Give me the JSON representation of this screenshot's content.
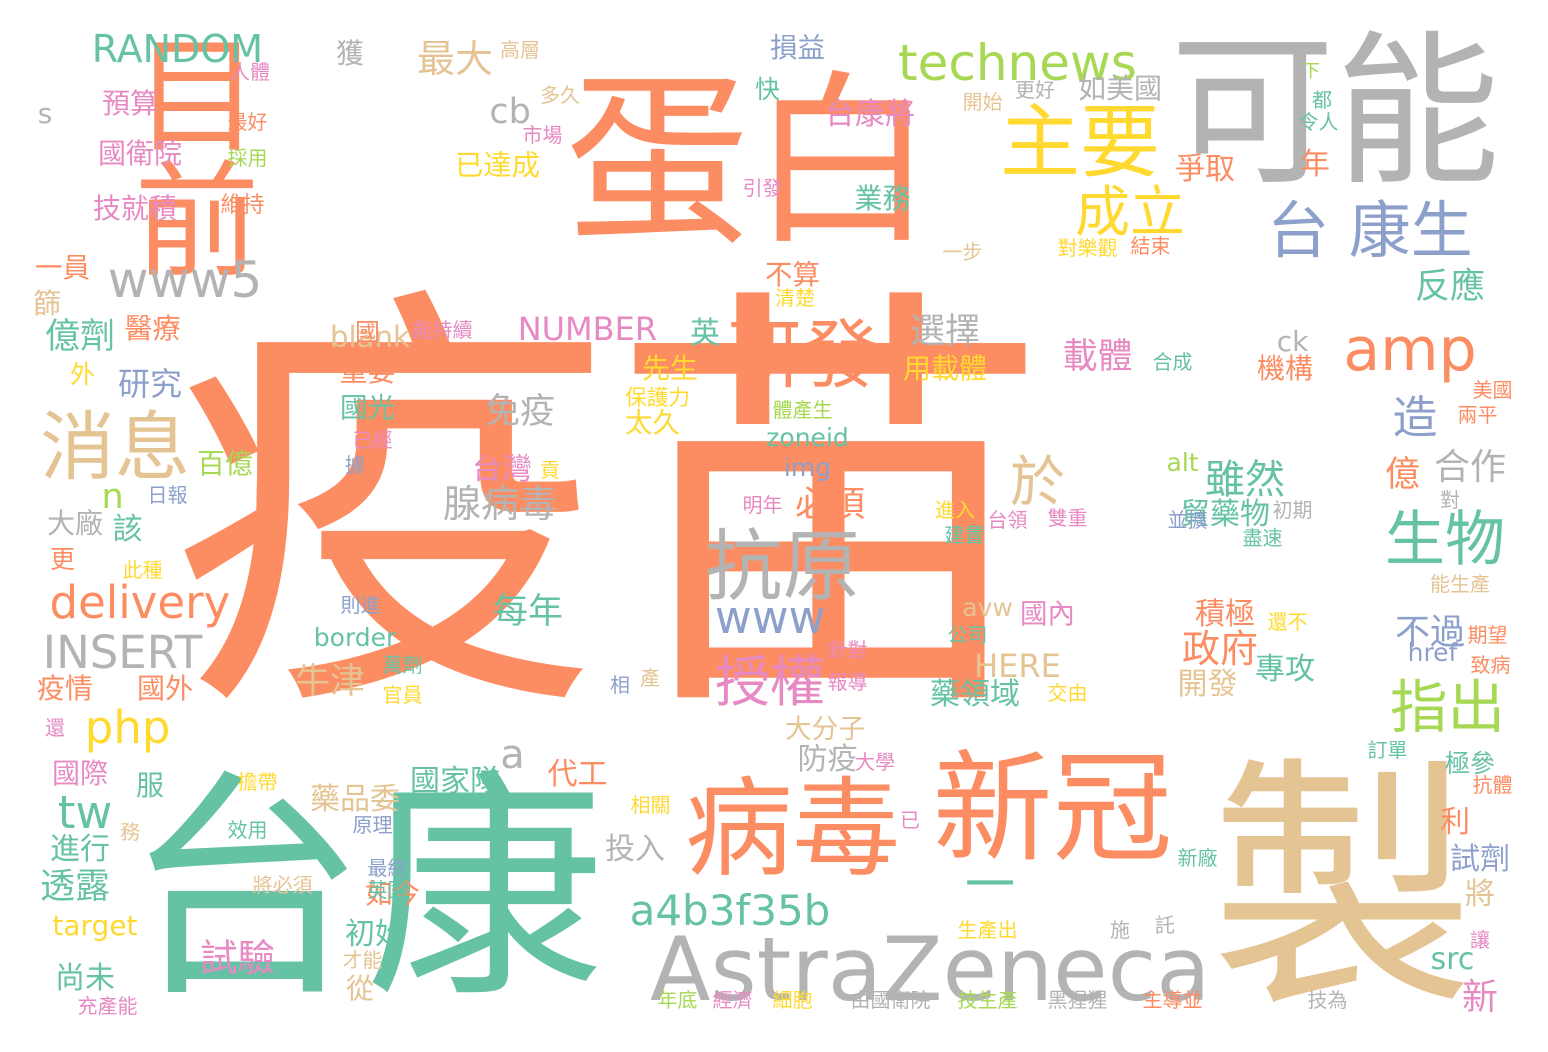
{
  "palette": {
    "orange": "#fc8d62",
    "teal": "#66c2a5",
    "tan": "#e5c494",
    "gray": "#b3b3b3",
    "blue": "#8da0cb",
    "pink": "#e78ac3",
    "green": "#a6d854",
    "yellow": "#ffd92f"
  },
  "words": [
    {
      "text": "疫苗",
      "color": "orange"
    },
    {
      "text": "台康",
      "color": "teal"
    },
    {
      "text": "製",
      "color": "tan"
    },
    {
      "text": "目前",
      "color": "orange"
    },
    {
      "text": "蛋白",
      "color": "orange"
    },
    {
      "text": "可能",
      "color": "gray"
    },
    {
      "text": "一",
      "color": "teal"
    },
    {
      "text": "AstraZeneca",
      "color": "gray"
    },
    {
      "text": "新冠",
      "color": "orange"
    },
    {
      "text": "病毒",
      "color": "orange"
    },
    {
      "text": "technews",
      "color": "green"
    },
    {
      "text": "RANDOM",
      "color": "teal"
    },
    {
      "text": "主要",
      "color": "yellow"
    },
    {
      "text": "成立",
      "color": "yellow"
    },
    {
      "text": "台 康生",
      "color": "blue"
    },
    {
      "text": "www5",
      "color": "gray"
    },
    {
      "text": "amp",
      "color": "orange"
    },
    {
      "text": "研發",
      "color": "orange"
    },
    {
      "text": "消息",
      "color": "tan"
    },
    {
      "text": "抗原",
      "color": "gray"
    },
    {
      "text": "delivery",
      "color": "orange"
    },
    {
      "text": "www",
      "color": "blue"
    },
    {
      "text": "INSERT",
      "color": "gray"
    },
    {
      "text": "授權",
      "color": "pink"
    },
    {
      "text": "php",
      "color": "yellow"
    },
    {
      "text": "生物",
      "color": "teal"
    },
    {
      "text": "指出",
      "color": "green"
    },
    {
      "text": "tw",
      "color": "teal"
    },
    {
      "text": "a4b3f35b",
      "color": "teal"
    },
    {
      "text": "NUMBER",
      "color": "pink"
    },
    {
      "text": "HERE",
      "color": "tan"
    },
    {
      "text": "最大",
      "color": "tan"
    },
    {
      "text": "cb",
      "color": "gray"
    },
    {
      "text": "已達成",
      "color": "yellow"
    },
    {
      "text": "台康將",
      "color": "pink"
    },
    {
      "text": "業務",
      "color": "teal"
    },
    {
      "text": "選擇",
      "color": "gray"
    },
    {
      "text": "載體",
      "color": "pink"
    },
    {
      "text": "於",
      "color": "tan"
    },
    {
      "text": "雖然",
      "color": "teal"
    },
    {
      "text": "造",
      "color": "blue"
    },
    {
      "text": "反應",
      "color": "teal"
    },
    {
      "text": "合作",
      "color": "gray"
    },
    {
      "text": "免疫",
      "color": "gray"
    },
    {
      "text": "台灣",
      "color": "pink"
    },
    {
      "text": "腺病毒",
      "color": "gray"
    },
    {
      "text": "必須",
      "color": "orange"
    },
    {
      "text": "每年",
      "color": "teal"
    },
    {
      "text": "牛津",
      "color": "tan"
    },
    {
      "text": "政府",
      "color": "orange"
    },
    {
      "text": "專攻",
      "color": "teal"
    },
    {
      "text": "不過",
      "color": "blue"
    },
    {
      "text": "億劑",
      "color": "teal"
    },
    {
      "text": "研究",
      "color": "blue"
    },
    {
      "text": "預算",
      "color": "pink"
    },
    {
      "text": "國衛院",
      "color": "pink"
    },
    {
      "text": "技就積",
      "color": "pink"
    },
    {
      "text": "獲",
      "color": "gray"
    },
    {
      "text": "損益",
      "color": "blue"
    },
    {
      "text": "試驗",
      "color": "pink"
    },
    {
      "text": "尚未",
      "color": "teal"
    },
    {
      "text": "透露",
      "color": "teal"
    },
    {
      "text": "進行",
      "color": "teal"
    },
    {
      "text": "初始",
      "color": "teal"
    },
    {
      "text": "國家隊",
      "color": "teal"
    },
    {
      "text": "代工",
      "color": "orange"
    },
    {
      "text": "投入",
      "color": "gray"
    },
    {
      "text": "大分子",
      "color": "tan"
    },
    {
      "text": "防疫",
      "color": "gray"
    },
    {
      "text": "藥品委",
      "color": "tan"
    },
    {
      "text": "積極",
      "color": "orange"
    },
    {
      "text": "開發",
      "color": "tan"
    },
    {
      "text": "藥領域",
      "color": "teal"
    },
    {
      "text": "國內",
      "color": "pink"
    },
    {
      "text": "貿藥物",
      "color": "teal"
    },
    {
      "text": "試劑",
      "color": "blue"
    },
    {
      "text": "將",
      "color": "tan"
    },
    {
      "text": "新",
      "color": "pink"
    },
    {
      "text": "億",
      "color": "orange"
    },
    {
      "text": "利",
      "color": "orange"
    },
    {
      "text": "極參",
      "color": "teal"
    },
    {
      "text": "能生產",
      "color": "tan"
    },
    {
      "text": "n",
      "color": "green"
    },
    {
      "text": "該",
      "color": "teal"
    },
    {
      "text": "a",
      "color": "gray"
    },
    {
      "text": "快",
      "color": "teal"
    },
    {
      "text": "年",
      "color": "orange"
    },
    {
      "text": "爭取",
      "color": "orange"
    },
    {
      "text": "如美國",
      "color": "gray"
    },
    {
      "text": "機構",
      "color": "orange"
    },
    {
      "text": "不算",
      "color": "orange"
    },
    {
      "text": "英",
      "color": "teal"
    },
    {
      "text": "先生",
      "color": "yellow"
    },
    {
      "text": "太久",
      "color": "yellow"
    },
    {
      "text": "國光",
      "color": "teal"
    },
    {
      "text": "重要",
      "color": "orange"
    },
    {
      "text": "blank",
      "color": "tan"
    },
    {
      "text": "用載體",
      "color": "yellow"
    },
    {
      "text": "國",
      "color": "orange"
    },
    {
      "text": "醫療",
      "color": "orange"
    },
    {
      "text": "一員",
      "color": "orange"
    },
    {
      "text": "百億",
      "color": "green"
    },
    {
      "text": "疫情",
      "color": "orange"
    },
    {
      "text": "國外",
      "color": "orange"
    },
    {
      "text": "國際",
      "color": "pink"
    },
    {
      "text": "服",
      "color": "teal"
    },
    {
      "text": "從",
      "color": "tan"
    },
    {
      "text": "如今",
      "color": "orange"
    },
    {
      "text": "src",
      "color": "teal"
    },
    {
      "text": "zoneid",
      "color": "teal"
    },
    {
      "text": "img",
      "color": "blue"
    },
    {
      "text": "border",
      "color": "teal"
    },
    {
      "text": "avw",
      "color": "tan"
    },
    {
      "text": "alt",
      "color": "green"
    },
    {
      "text": "href",
      "color": "blue"
    },
    {
      "text": "ck",
      "color": "gray"
    },
    {
      "text": "target",
      "color": "yellow"
    },
    {
      "text": "s",
      "color": "gray"
    },
    {
      "text": "外",
      "color": "yellow"
    },
    {
      "text": "大廠",
      "color": "gray"
    },
    {
      "text": "更",
      "color": "orange"
    },
    {
      "text": "篩",
      "color": "tan"
    },
    {
      "text": "高層",
      "color": "tan"
    },
    {
      "text": "人體",
      "color": "pink"
    },
    {
      "text": "多久",
      "color": "tan"
    },
    {
      "text": "市場",
      "color": "pink"
    },
    {
      "text": "最好",
      "color": "orange"
    },
    {
      "text": "採用",
      "color": "green"
    },
    {
      "text": "維持",
      "color": "orange"
    },
    {
      "text": "開始",
      "color": "tan"
    },
    {
      "text": "更好",
      "color": "gray"
    },
    {
      "text": "下",
      "color": "green"
    },
    {
      "text": "都",
      "color": "teal"
    },
    {
      "text": "令人",
      "color": "teal"
    },
    {
      "text": "引發",
      "color": "pink"
    },
    {
      "text": "一步",
      "color": "tan"
    },
    {
      "text": "對樂觀",
      "color": "yellow"
    },
    {
      "text": "結束",
      "color": "orange"
    },
    {
      "text": "清楚",
      "color": "yellow"
    },
    {
      "text": "能持續",
      "color": "pink"
    },
    {
      "text": "合成",
      "color": "teal"
    },
    {
      "text": "美國",
      "color": "orange"
    },
    {
      "text": "兩平",
      "color": "orange"
    },
    {
      "text": "保護力",
      "color": "yellow"
    },
    {
      "text": "體產生",
      "color": "green"
    },
    {
      "text": "已經",
      "color": "pink"
    },
    {
      "text": "據",
      "color": "blue"
    },
    {
      "text": "貢",
      "color": "yellow"
    },
    {
      "text": "日報",
      "color": "blue"
    },
    {
      "text": "明年",
      "color": "pink"
    },
    {
      "text": "進入",
      "color": "yellow"
    },
    {
      "text": "建置",
      "color": "teal"
    },
    {
      "text": "台領",
      "color": "pink"
    },
    {
      "text": "雙重",
      "color": "pink"
    },
    {
      "text": "並擴",
      "color": "blue"
    },
    {
      "text": "初期",
      "color": "gray"
    },
    {
      "text": "盡速",
      "color": "teal"
    },
    {
      "text": "對",
      "color": "gray"
    },
    {
      "text": "此種",
      "color": "yellow"
    },
    {
      "text": "則進",
      "color": "blue"
    },
    {
      "text": "公司",
      "color": "teal"
    },
    {
      "text": "還不",
      "color": "yellow"
    },
    {
      "text": "期望",
      "color": "orange"
    },
    {
      "text": "致病",
      "color": "orange"
    },
    {
      "text": "針對",
      "color": "pink"
    },
    {
      "text": "報導",
      "color": "pink"
    },
    {
      "text": "交由",
      "color": "yellow"
    },
    {
      "text": "產",
      "color": "tan"
    },
    {
      "text": "萬劑",
      "color": "teal"
    },
    {
      "text": "官員",
      "color": "yellow"
    },
    {
      "text": "相",
      "color": "blue"
    },
    {
      "text": "還",
      "color": "pink"
    },
    {
      "text": "大學",
      "color": "pink"
    },
    {
      "text": "訂單",
      "color": "teal"
    },
    {
      "text": "抗體",
      "color": "orange"
    },
    {
      "text": "擔帶",
      "color": "yellow"
    },
    {
      "text": "相關",
      "color": "yellow"
    },
    {
      "text": "效用",
      "color": "teal"
    },
    {
      "text": "原理",
      "color": "blue"
    },
    {
      "text": "已",
      "color": "pink"
    },
    {
      "text": "務",
      "color": "tan"
    },
    {
      "text": "最終",
      "color": "blue"
    },
    {
      "text": "英國",
      "color": "teal"
    },
    {
      "text": "將必須",
      "color": "tan"
    },
    {
      "text": "新廠",
      "color": "teal"
    },
    {
      "text": "生產出",
      "color": "yellow"
    },
    {
      "text": "施",
      "color": "gray"
    },
    {
      "text": "託",
      "color": "gray"
    },
    {
      "text": "才能",
      "color": "tan"
    },
    {
      "text": "讓",
      "color": "pink"
    },
    {
      "text": "充產能",
      "color": "pink"
    },
    {
      "text": "年底",
      "color": "green"
    },
    {
      "text": "經濟",
      "color": "pink"
    },
    {
      "text": "細胞",
      "color": "yellow"
    },
    {
      "text": "由國衛院",
      "color": "gray"
    },
    {
      "text": "技生產",
      "color": "green"
    },
    {
      "text": "黑猩猩",
      "color": "gray"
    },
    {
      "text": "主導並",
      "color": "orange"
    },
    {
      "text": "技為",
      "color": "gray"
    }
  ]
}
